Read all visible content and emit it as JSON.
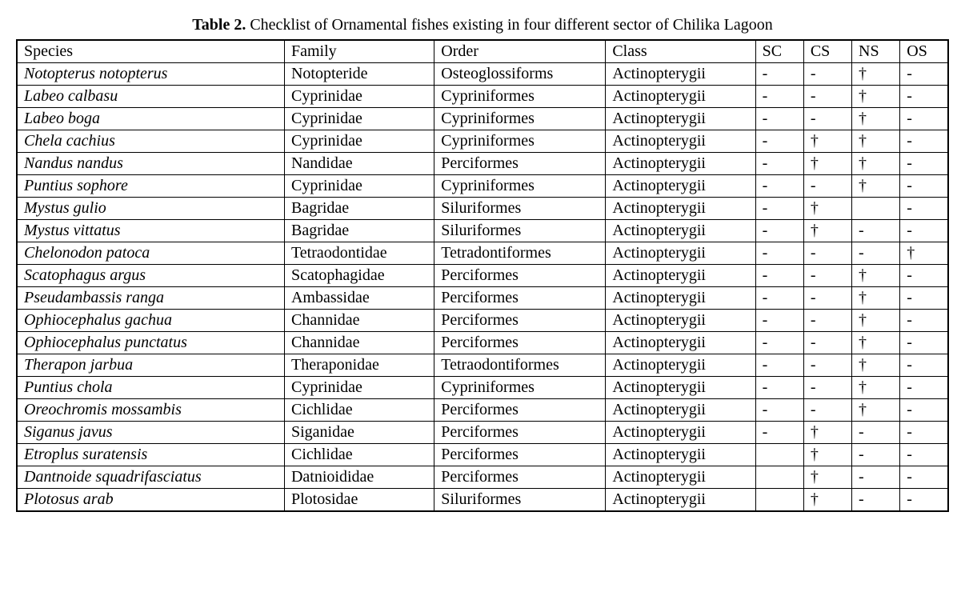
{
  "caption": {
    "label": "Table 2.",
    "text": " Checklist of Ornamental fishes existing in four different sector of Chilika Lagoon"
  },
  "headers": {
    "species": "Species",
    "family": "Family",
    "order": "Order",
    "class": "Class",
    "sc": "SC",
    "cs": "CS",
    "ns": "NS",
    "os": "OS"
  },
  "rows": [
    {
      "species": "Notopterus notopterus",
      "family": "Notopteride",
      "order": "Osteoglossiforms",
      "class": "Actinopterygii",
      "sc": "-",
      "cs": "-",
      "ns": "†",
      "os": "-"
    },
    {
      "species": "Labeo calbasu",
      "family": "Cyprinidae",
      "order": "Cypriniformes",
      "class": "Actinopterygii",
      "sc": "-",
      "cs": "-",
      "ns": "†",
      "os": "-"
    },
    {
      "species": "Labeo boga",
      "family": "Cyprinidae",
      "order": "Cypriniformes",
      "class": "Actinopterygii",
      "sc": "-",
      "cs": "-",
      "ns": "†",
      "os": "-"
    },
    {
      "species": "Chela cachius",
      "family": "Cyprinidae",
      "order": "Cypriniformes",
      "class": "Actinopterygii",
      "sc": "-",
      "cs": "†",
      "ns": "†",
      "os": "-"
    },
    {
      "species": "Nandus nandus",
      "family": "Nandidae",
      "order": "Perciformes",
      "class": "Actinopterygii",
      "sc": "-",
      "cs": "†",
      "ns": "†",
      "os": "-"
    },
    {
      "species": "Puntius sophore",
      "family": "Cyprinidae",
      "order": "Cypriniformes",
      "class": "Actinopterygii",
      "sc": "-",
      "cs": "-",
      "ns": "†",
      "os": "-"
    },
    {
      "species": "Mystus gulio",
      "family": "Bagridae",
      "order": "Siluriformes",
      "class": "Actinopterygii",
      "sc": "-",
      "cs": "†",
      "ns": "",
      "os": "-"
    },
    {
      "species": "Mystus vittatus",
      "family": "Bagridae",
      "order": "Siluriformes",
      "class": "Actinopterygii",
      "sc": "-",
      "cs": "†",
      "ns": "-",
      "os": "-"
    },
    {
      "species": "Chelonodon patoca",
      "family": "Tetraodontidae",
      "order": "Tetradontiformes",
      "class": "Actinopterygii",
      "sc": "-",
      "cs": "-",
      "ns": "-",
      "os": "†"
    },
    {
      "species": "Scatophagus argus",
      "family": "Scatophagidae",
      "order": "Perciformes",
      "class": "Actinopterygii",
      "sc": "-",
      "cs": "-",
      "ns": "†",
      "os": "-"
    },
    {
      "species": "Pseudambassis ranga",
      "family": "Ambassidae",
      "order": "Perciformes",
      "class": "Actinopterygii",
      "sc": "-",
      "cs": "-",
      "ns": "†",
      "os": "-"
    },
    {
      "species": "Ophiocephalus gachua",
      "family": "Channidae",
      "order": "Perciformes",
      "class": "Actinopterygii",
      "sc": "-",
      "cs": "-",
      "ns": "†",
      "os": "-"
    },
    {
      "species": "Ophiocephalus punctatus",
      "family": "Channidae",
      "order": "Perciformes",
      "class": "Actinopterygii",
      "sc": "-",
      "cs": "-",
      "ns": "†",
      "os": "-"
    },
    {
      "species": "Therapon jarbua",
      "family": "Theraponidae",
      "order": "Tetraodontiformes",
      "class": "Actinopterygii",
      "sc": "-",
      "cs": "-",
      "ns": "†",
      "os": "-"
    },
    {
      "species": "Puntius chola",
      "family": "Cyprinidae",
      "order": "Cypriniformes",
      "class": "Actinopterygii",
      "sc": "-",
      "cs": "-",
      "ns": "†",
      "os": "-"
    },
    {
      "species": "Oreochromis mossambis",
      "family": "Cichlidae",
      "order": "Perciformes",
      "class": "Actinopterygii",
      "sc": "-",
      "cs": "-",
      "ns": "†",
      "os": "-"
    },
    {
      "species": "Siganus javus",
      "family": "Siganidae",
      "order": "Perciformes",
      "class": "Actinopterygii",
      "sc": "-",
      "cs": "†",
      "ns": "-",
      "os": "-"
    },
    {
      "species": "Etroplus suratensis",
      "family": "Cichlidae",
      "order": "Perciformes",
      "class": "Actinopterygii",
      "sc": "",
      "cs": "†",
      "ns": "-",
      "os": "-"
    },
    {
      "species": "Dantnoide squadrifasciatus",
      "family": "Datnioididae",
      "order": "Perciformes",
      "class": "Actinopterygii",
      "sc": "",
      "cs": "†",
      "ns": "-",
      "os": "-"
    },
    {
      "species": "Plotosus arab",
      "family": "Plotosidae",
      "order": "Siluriformes",
      "class": "Actinopterygii",
      "sc": "",
      "cs": "†",
      "ns": "-",
      "os": "-"
    }
  ]
}
